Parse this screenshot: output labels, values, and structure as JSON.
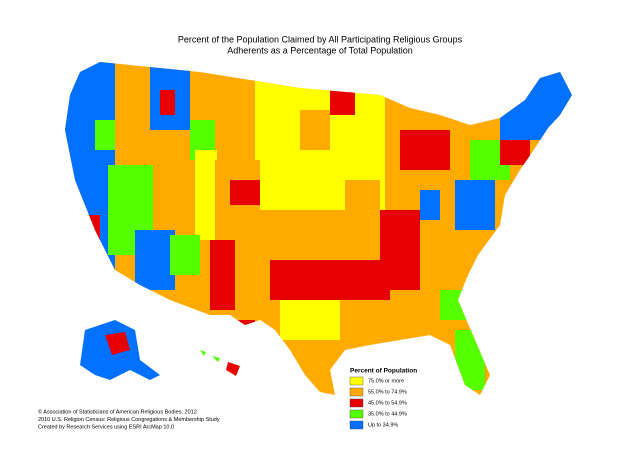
{
  "title": "Percent of the Population Claimed by All Participating Religious Groups",
  "subtitle": "Adherents as a Percentage of Total Population",
  "legend": {
    "title": "Percent of Population",
    "entries": [
      {
        "label": "75.0% or more",
        "color": "#ffff00"
      },
      {
        "label": "55.0% to 74.9%",
        "color": "#ffaa00"
      },
      {
        "label": "45.0% to 54.9%",
        "color": "#e60000"
      },
      {
        "label": "35.0% to 44.9%",
        "color": "#55ff00"
      },
      {
        "label": "Up to 34.9%",
        "color": "#0070ff"
      }
    ]
  },
  "credits": [
    "© Association of Statisticians of American Religious Bodies, 2012",
    "2010 U.S. Religion Census: Religious Congregations & Membership Study",
    "Created by Research Services using ESRI ArcMap 10.0"
  ]
}
